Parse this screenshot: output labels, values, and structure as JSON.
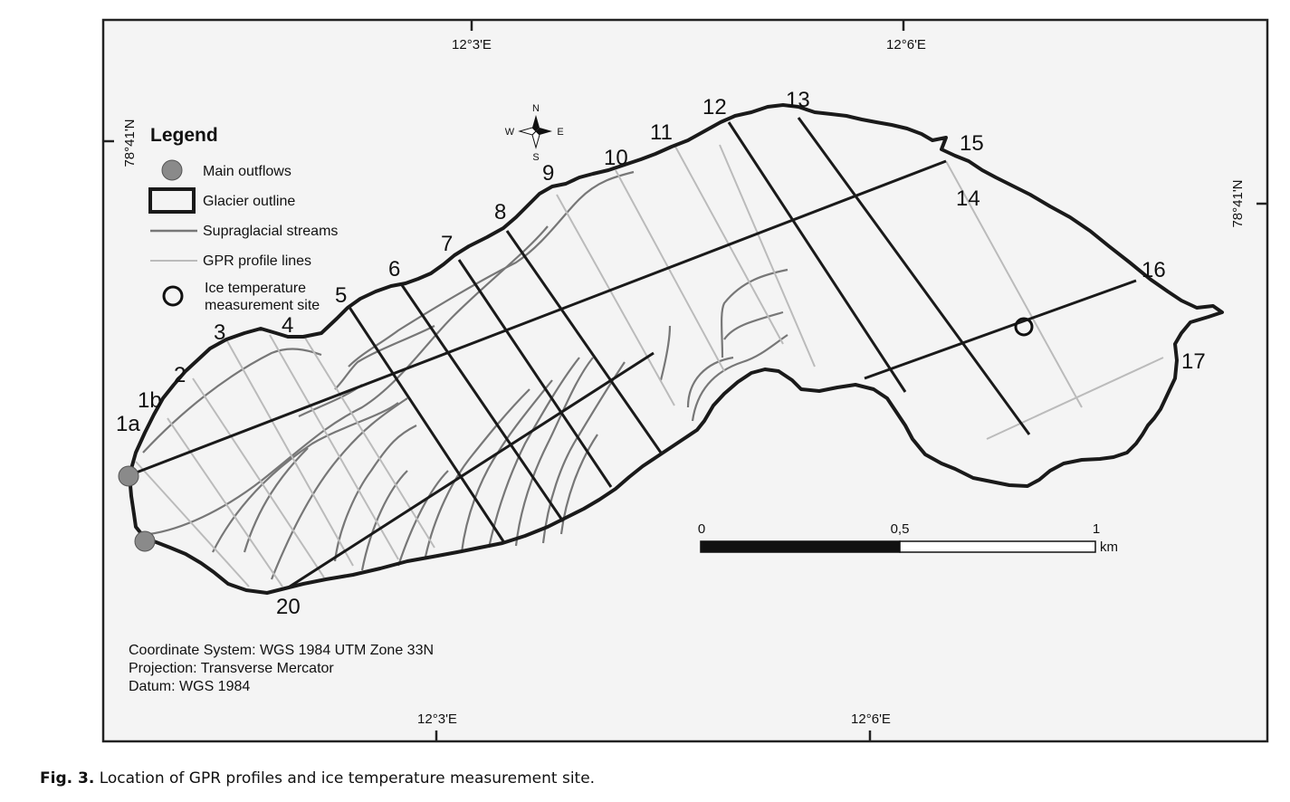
{
  "map": {
    "coords_top": [
      "12°3'E",
      "12°6'E"
    ],
    "coords_bottom": [
      "12°3'E",
      "12°6'E"
    ],
    "coords_left": "78°41'N",
    "coords_right": "78°41'N",
    "compass": {
      "n": "N",
      "s": "S",
      "e": "E",
      "w": "W"
    },
    "legend": {
      "title": "Legend",
      "items": {
        "outflows": "Main outflows",
        "outline": "Glacier outline",
        "streams": "Supraglacial streams",
        "gpr": "GPR profile lines",
        "ice_temp_1": "Ice temperature",
        "ice_temp_2": "measurement site"
      }
    },
    "numbers": [
      "1a",
      "1b",
      "2",
      "3",
      "4",
      "5",
      "6",
      "7",
      "8",
      "9",
      "10",
      "11",
      "12",
      "13",
      "14",
      "15",
      "16",
      "17",
      "20"
    ],
    "scalebar": {
      "ticks": [
        "0",
        "0,5",
        "1"
      ],
      "unit": "km"
    },
    "info": [
      "Coordinate System: WGS 1984 UTM Zone 33N",
      "Projection: Transverse Mercator",
      "Datum: WGS 1984"
    ],
    "colors": {
      "outline": "#1a1a1a",
      "streams": "#777777",
      "gpr_light": "#bbbbbb",
      "gpr_dark": "#1a1a1a",
      "outflow": "#8a8a8a",
      "background": "#f4f4f4"
    }
  },
  "caption": {
    "label": "Fig. 3.",
    "text": "Location of GPR profiles and ice temperature measurement site."
  }
}
